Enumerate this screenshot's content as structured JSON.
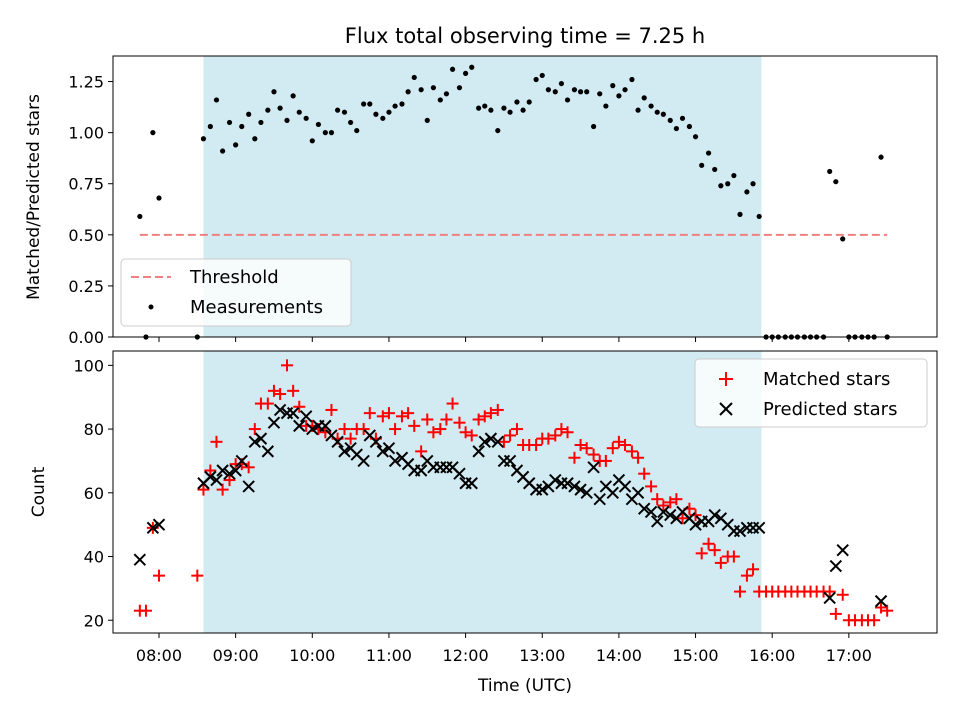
{
  "chart_data": [
    {
      "type": "scatter",
      "title": "Flux total observing time = 7.25 h",
      "ylabel": "Matched/Predicted stars",
      "ylim": [
        0,
        1.375
      ],
      "yticks": [
        0.0,
        0.25,
        0.5,
        0.75,
        1.0,
        1.25
      ],
      "ytick_labels": [
        "0.00",
        "0.25",
        "0.50",
        "0.75",
        "1.00",
        "1.25"
      ],
      "observing_window": [
        8.58,
        15.86
      ],
      "threshold": {
        "name": "Threshold",
        "value": 0.5,
        "x_range": [
          7.75,
          17.5
        ],
        "color": "#f08080"
      },
      "legend": {
        "position": "lower-left",
        "entries": [
          "Threshold",
          "Measurements"
        ]
      },
      "measurements": {
        "name": "Measurements",
        "color": "#000000",
        "x": [
          7.75,
          7.83,
          7.92,
          8.0,
          8.5,
          8.58,
          8.67,
          8.75,
          8.83,
          8.92,
          9.0,
          9.08,
          9.17,
          9.25,
          9.33,
          9.42,
          9.5,
          9.58,
          9.67,
          9.75,
          9.83,
          9.92,
          10.0,
          10.08,
          10.17,
          10.25,
          10.33,
          10.42,
          10.5,
          10.58,
          10.67,
          10.75,
          10.83,
          10.92,
          11.0,
          11.08,
          11.17,
          11.25,
          11.33,
          11.42,
          11.5,
          11.58,
          11.67,
          11.75,
          11.83,
          11.92,
          12.0,
          12.08,
          12.17,
          12.25,
          12.33,
          12.42,
          12.5,
          12.58,
          12.67,
          12.75,
          12.83,
          12.92,
          13.0,
          13.08,
          13.17,
          13.25,
          13.33,
          13.42,
          13.5,
          13.58,
          13.67,
          13.75,
          13.83,
          13.92,
          14.0,
          14.08,
          14.17,
          14.25,
          14.33,
          14.42,
          14.5,
          14.58,
          14.67,
          14.75,
          14.83,
          14.92,
          15.0,
          15.08,
          15.17,
          15.25,
          15.33,
          15.42,
          15.5,
          15.58,
          15.67,
          15.75,
          15.83,
          15.92,
          16.0,
          16.08,
          16.17,
          16.25,
          16.33,
          16.42,
          16.5,
          16.58,
          16.67,
          16.75,
          16.83,
          16.92,
          17.0,
          17.08,
          17.17,
          17.25,
          17.33,
          17.42,
          17.5
        ],
        "y": [
          0.59,
          0.0,
          1.0,
          0.68,
          0.0,
          0.97,
          1.03,
          1.16,
          0.91,
          1.05,
          0.94,
          1.03,
          1.09,
          0.97,
          1.05,
          1.11,
          1.2,
          1.12,
          1.06,
          1.18,
          1.1,
          1.07,
          0.96,
          1.04,
          1.0,
          1.0,
          1.11,
          1.1,
          1.05,
          1.01,
          1.14,
          1.14,
          1.09,
          1.07,
          1.1,
          1.13,
          1.14,
          1.2,
          1.27,
          1.21,
          1.06,
          1.22,
          1.16,
          1.19,
          1.31,
          1.22,
          1.29,
          1.32,
          1.12,
          1.13,
          1.11,
          1.01,
          1.12,
          1.1,
          1.15,
          1.11,
          1.15,
          1.26,
          1.28,
          1.21,
          1.2,
          1.24,
          1.16,
          1.21,
          1.2,
          1.2,
          1.03,
          1.19,
          1.13,
          1.23,
          1.18,
          1.21,
          1.26,
          1.11,
          1.17,
          1.13,
          1.1,
          1.09,
          1.06,
          1.02,
          1.07,
          1.03,
          0.98,
          0.84,
          0.9,
          0.82,
          0.74,
          0.75,
          0.79,
          0.6,
          0.71,
          0.75,
          0.59,
          0.0,
          0.0,
          0.0,
          0.0,
          0.0,
          0.0,
          0.0,
          0.0,
          0.0,
          0.0,
          0.81,
          0.76,
          0.48,
          0.0,
          0.0,
          0.0,
          0.0,
          0.0,
          0.88,
          0.0
        ]
      }
    },
    {
      "type": "scatter",
      "xlabel": "Time (UTC)",
      "ylabel": "Count",
      "ylim": [
        16,
        104.5
      ],
      "yticks": [
        20,
        40,
        60,
        80,
        100
      ],
      "ytick_labels": [
        "20",
        "40",
        "60",
        "80",
        "100"
      ],
      "xlim": [
        7.4,
        18.15
      ],
      "xticks": [
        8,
        9,
        10,
        11,
        12,
        13,
        14,
        15,
        16,
        17
      ],
      "xtick_labels": [
        "08:00",
        "09:00",
        "10:00",
        "11:00",
        "12:00",
        "13:00",
        "14:00",
        "15:00",
        "16:00",
        "17:00"
      ],
      "observing_window": [
        8.58,
        15.86
      ],
      "legend": {
        "position": "top-right",
        "entries": [
          "Matched stars",
          "Predicted stars"
        ]
      },
      "series": [
        {
          "name": "Matched stars",
          "marker": "+",
          "color": "#ff0000",
          "x": [
            7.75,
            7.83,
            7.92,
            8.0,
            8.5,
            8.58,
            8.67,
            8.75,
            8.83,
            8.92,
            9.0,
            9.08,
            9.17,
            9.25,
            9.33,
            9.42,
            9.5,
            9.58,
            9.67,
            9.75,
            9.83,
            9.92,
            10.0,
            10.08,
            10.17,
            10.25,
            10.33,
            10.42,
            10.5,
            10.58,
            10.67,
            10.75,
            10.83,
            10.92,
            11.0,
            11.08,
            11.17,
            11.25,
            11.33,
            11.42,
            11.5,
            11.58,
            11.67,
            11.75,
            11.83,
            11.92,
            12.0,
            12.08,
            12.17,
            12.25,
            12.33,
            12.42,
            12.5,
            12.58,
            12.67,
            12.75,
            12.83,
            12.92,
            13.0,
            13.08,
            13.17,
            13.25,
            13.33,
            13.42,
            13.5,
            13.58,
            13.67,
            13.75,
            13.83,
            13.92,
            14.0,
            14.08,
            14.17,
            14.25,
            14.33,
            14.42,
            14.5,
            14.58,
            14.67,
            14.75,
            14.83,
            14.92,
            15.0,
            15.08,
            15.17,
            15.25,
            15.33,
            15.42,
            15.5,
            15.58,
            15.67,
            15.75,
            15.83,
            15.92,
            16.0,
            16.08,
            16.17,
            16.25,
            16.33,
            16.42,
            16.5,
            16.58,
            16.67,
            16.75,
            16.83,
            16.92,
            17.0,
            17.08,
            17.17,
            17.25,
            17.33,
            17.42,
            17.5
          ],
          "y": [
            23,
            23,
            49,
            34,
            34,
            61,
            67,
            76,
            61,
            64,
            69,
            69,
            68,
            80,
            88,
            88,
            92,
            91,
            100,
            92,
            87,
            81,
            81,
            80,
            79,
            86,
            77,
            80,
            77,
            80,
            80,
            85,
            77,
            84,
            85,
            80,
            84,
            85,
            81,
            73,
            83,
            79,
            80,
            83,
            88,
            82,
            79,
            78,
            83,
            84,
            85,
            86,
            76,
            78,
            80,
            75,
            75,
            75,
            77,
            77,
            78,
            80,
            79,
            71,
            75,
            74,
            72,
            70,
            70,
            74,
            76,
            75,
            73,
            71,
            66,
            62,
            58,
            56,
            57,
            58,
            52,
            55,
            53,
            41,
            44,
            42,
            38,
            40,
            40,
            29,
            34,
            36,
            29,
            29,
            29,
            29,
            29,
            29,
            29,
            29,
            29,
            29,
            29,
            29,
            22,
            28,
            20,
            20,
            20,
            20,
            20,
            24,
            23
          ]
        },
        {
          "name": "Predicted stars",
          "marker": "x",
          "color": "#000000",
          "x": [
            7.75,
            7.92,
            8.0,
            8.58,
            8.67,
            8.75,
            8.83,
            8.92,
            9.0,
            9.08,
            9.17,
            9.25,
            9.33,
            9.42,
            9.5,
            9.58,
            9.67,
            9.75,
            9.83,
            9.92,
            10.0,
            10.08,
            10.17,
            10.25,
            10.33,
            10.42,
            10.5,
            10.58,
            10.67,
            10.75,
            10.83,
            10.92,
            11.0,
            11.08,
            11.17,
            11.25,
            11.33,
            11.42,
            11.5,
            11.58,
            11.67,
            11.75,
            11.83,
            11.92,
            12.0,
            12.08,
            12.17,
            12.25,
            12.33,
            12.42,
            12.5,
            12.58,
            12.67,
            12.75,
            12.83,
            12.92,
            13.0,
            13.08,
            13.17,
            13.25,
            13.33,
            13.42,
            13.5,
            13.58,
            13.67,
            13.75,
            13.83,
            13.92,
            14.0,
            14.08,
            14.17,
            14.25,
            14.33,
            14.42,
            14.5,
            14.58,
            14.67,
            14.75,
            14.83,
            14.92,
            15.0,
            15.08,
            15.17,
            15.25,
            15.33,
            15.42,
            15.5,
            15.58,
            15.67,
            15.75,
            15.83,
            16.75,
            16.83,
            16.92,
            17.42
          ],
          "y": [
            39,
            49,
            50,
            63,
            65,
            64,
            67,
            66,
            67,
            70,
            62,
            76,
            77,
            73,
            82,
            86,
            85,
            85,
            81,
            84,
            80,
            81,
            81,
            78,
            76,
            73,
            74,
            72,
            70,
            78,
            76,
            73,
            74,
            70,
            71,
            69,
            67,
            67,
            70,
            68,
            68,
            68,
            68,
            66,
            63,
            63,
            73,
            76,
            77,
            76,
            70,
            70,
            67,
            65,
            63,
            61,
            61,
            62,
            64,
            63,
            63,
            62,
            61,
            60,
            68,
            58,
            62,
            60,
            64,
            62,
            58,
            60,
            55,
            54,
            51,
            54,
            53,
            52,
            54,
            52,
            50,
            51,
            51,
            53,
            52,
            50,
            48,
            48,
            49,
            49,
            49,
            27,
            37,
            42,
            26
          ]
        }
      ]
    }
  ]
}
